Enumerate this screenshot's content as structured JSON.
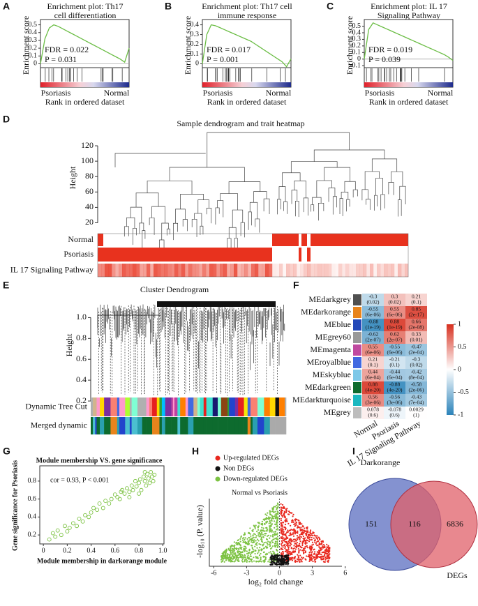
{
  "gsea": [
    {
      "label": "A",
      "title": [
        "Enrichment plot:  Th17",
        "cell differentiation"
      ],
      "ylabel": "Enrichment score",
      "fdr": "FDR = 0.022",
      "p": "P = 0.031",
      "left": "Psoriasis",
      "right": "Normal",
      "xlabel": "Rank in ordered dataset",
      "ylim": [
        -0.05,
        0.55
      ],
      "yticks": [
        0,
        0.1,
        0.2,
        0.3,
        0.4,
        0.5
      ],
      "es_curve": [
        0,
        0.32,
        0.46,
        0.5,
        0.48,
        0.45,
        0.42,
        0.39,
        0.36,
        0.33,
        0.3,
        0.27,
        0.24,
        0.21,
        0.18,
        0.15,
        0.12,
        0.09,
        0.06,
        0.02,
        0.2
      ]
    },
    {
      "label": "B",
      "title": [
        "Enrichment plot:  Th17 cell",
        "immune response"
      ],
      "ylabel": "Enrichment score",
      "fdr": "FDR = 0.017",
      "p": "P = 0.001",
      "left": "Psoriasis",
      "right": "Normal",
      "xlabel": "Rank in ordered dataset",
      "ylim": [
        -0.04,
        0.44
      ],
      "yticks": [
        0,
        0.1,
        0.2,
        0.3,
        0.4
      ],
      "es_curve": [
        0,
        0.3,
        0.4,
        0.39,
        0.37,
        0.35,
        0.33,
        0.31,
        0.29,
        0.27,
        0.25,
        0.23,
        0.2,
        0.17,
        0.14,
        0.11,
        0.08,
        0.05,
        0.02,
        -0.03,
        0.05
      ]
    },
    {
      "label": "C",
      "title": [
        "Enrichment plot: IL 17",
        "Signaling Pathway"
      ],
      "ylabel": "Enrichment score",
      "fdr": "FDR = 0.019",
      "p": "P = 0.039",
      "left": "Psoriasis",
      "right": "Normal",
      "xlabel": "Rank in ordered dataset",
      "ylim": [
        -0.13,
        0.58
      ],
      "yticks": [
        -0.1,
        0,
        0.1,
        0.2,
        0.3,
        0.4,
        0.5
      ],
      "es_curve": [
        0,
        0.45,
        0.55,
        0.52,
        0.49,
        0.46,
        0.43,
        0.4,
        0.37,
        0.34,
        0.31,
        0.28,
        0.25,
        0.22,
        0.19,
        0.16,
        0.13,
        0.1,
        0.07,
        0.03,
        -0.02
      ]
    }
  ],
  "dendrogram": {
    "label": "D",
    "title": "Sample dendrogram and trait heatmap",
    "ylabel": "Height",
    "ylim": [
      15,
      130
    ],
    "yticks": [
      120,
      100,
      80,
      60,
      40,
      20
    ],
    "traits": [
      "Normal",
      "Psoriasis",
      "IL 17 Signaling Pathway"
    ]
  },
  "cluster": {
    "label": "E",
    "title": "Cluster Dendrogram",
    "ylabel": "Height",
    "ylim": [
      0.1,
      1.15
    ],
    "yticks": [
      {
        "value": 1,
        "label": "1.0"
      },
      0.8,
      0.6,
      0.4,
      0.2
    ],
    "bars": [
      "Dynamic Tree Cut",
      "Merged dynamic"
    ]
  },
  "module_heatmap": {
    "label": "F",
    "columns": [
      "Normal",
      "Psoriasis",
      "IL 17 Signaling Pathway"
    ],
    "clim": [
      -1,
      1
    ],
    "colorbar_ticks": [
      1,
      0.5,
      0,
      -0.5,
      -1
    ],
    "rows": [
      {
        "name": "MEdarkgrey",
        "color": "#505050",
        "cells": [
          {
            "value": -0.3,
            "p": "(0.02)"
          },
          {
            "value": 0.3,
            "p": "(0.02)"
          },
          {
            "value": 0.21,
            "p": "(0.1)"
          }
        ]
      },
      {
        "name": "MEdarkorange",
        "color": "#e8841c",
        "cells": [
          {
            "value": -0.55,
            "p": "(6e-06)"
          },
          {
            "value": 0.55,
            "p": "(6e-06)"
          },
          {
            "value": 0.85,
            "p": "(2e-17)"
          }
        ]
      },
      {
        "name": "MEblue",
        "color": "#2449b8",
        "cells": [
          {
            "value": -0.88,
            "p": "(1e-19)"
          },
          {
            "value": 0.88,
            "p": "(1e-19)"
          },
          {
            "value": 0.66,
            "p": "(2e-08)"
          }
        ]
      },
      {
        "name": "MEgrey60",
        "color": "#999999",
        "cells": [
          {
            "value": -0.62,
            "p": "(2e-07)"
          },
          {
            "value": 0.62,
            "p": "(2e-07)"
          },
          {
            "value": 0.33,
            "p": "(0.01)"
          }
        ]
      },
      {
        "name": "MEmagenta",
        "color": "#c04aa0",
        "cells": [
          {
            "value": 0.55,
            "p": "(6e-06)"
          },
          {
            "value": -0.55,
            "p": "(6e-06)"
          },
          {
            "value": -0.47,
            "p": "(2e-04)"
          }
        ]
      },
      {
        "name": "MEroyalblue",
        "color": "#4169e1",
        "cells": [
          {
            "value": 0.21,
            "p": "(0.1)"
          },
          {
            "value": -0.21,
            "p": "(0.1)"
          },
          {
            "value": -0.3,
            "p": "(0.02)"
          }
        ]
      },
      {
        "name": "MEskyblue",
        "color": "#7ec8e8",
        "cells": [
          {
            "value": 0.44,
            "p": "(6e-04)"
          },
          {
            "value": -0.44,
            "p": "(6e-04)"
          },
          {
            "value": -0.42,
            "p": "(8e-04)"
          }
        ]
      },
      {
        "name": "MEdarkgreen",
        "color": "#0d6b2e",
        "cells": [
          {
            "value": 0.88,
            "p": "(4e-20)"
          },
          {
            "value": -0.88,
            "p": "(4e-20)"
          },
          {
            "value": -0.58,
            "p": "(2e-06)"
          }
        ]
      },
      {
        "name": "MEdarkturquoise",
        "color": "#1bb8c0",
        "cells": [
          {
            "value": 0.56,
            "p": "(3e-06)"
          },
          {
            "value": -0.56,
            "p": "(3e-06)"
          },
          {
            "value": -0.43,
            "p": "(7e-04)"
          }
        ]
      },
      {
        "name": "MEgrey",
        "color": "#bdbdbd",
        "cells": [
          {
            "value": 0.078,
            "p": "(0.6)"
          },
          {
            "value": -0.078,
            "p": "(0.6)"
          },
          {
            "value": 0.0029,
            "p": "(1)"
          }
        ]
      }
    ]
  },
  "scatter": {
    "label": "G",
    "title": "Module membership VS. gene significance",
    "annotation": "cor = 0.93, P < 0.001",
    "xlabel": "Module membership in darkorange module",
    "ylabel": "Gene significance for Psoriasis",
    "color": "#7cc242",
    "xlim": [
      -0.03,
      1.01
    ],
    "ylim": [
      0.1,
      0.97
    ],
    "xticks": [
      0,
      0.2,
      0.4,
      0.6,
      0.8,
      {
        "value": 1,
        "label": "1.0"
      }
    ],
    "yticks": [
      0.2,
      0.4,
      0.6,
      0.8
    ],
    "x": [
      0.05,
      0.08,
      0.1,
      0.12,
      0.15,
      0.18,
      0.2,
      0.22,
      0.25,
      0.28,
      0.3,
      0.33,
      0.35,
      0.38,
      0.4,
      0.42,
      0.45,
      0.47,
      0.5,
      0.52,
      0.55,
      0.57,
      0.6,
      0.62,
      0.64,
      0.66,
      0.68,
      0.7,
      0.72,
      0.74,
      0.75,
      0.77,
      0.78,
      0.8,
      0.81,
      0.82,
      0.84,
      0.85,
      0.86,
      0.87,
      0.88,
      0.89,
      0.9,
      0.91,
      0.92,
      0.93,
      0.72,
      0.65,
      0.8,
      0.85
    ],
    "y": [
      0.15,
      0.22,
      0.18,
      0.25,
      0.2,
      0.3,
      0.24,
      0.28,
      0.33,
      0.3,
      0.38,
      0.35,
      0.42,
      0.4,
      0.45,
      0.5,
      0.48,
      0.55,
      0.5,
      0.58,
      0.55,
      0.6,
      0.65,
      0.62,
      0.6,
      0.7,
      0.66,
      0.72,
      0.68,
      0.75,
      0.7,
      0.8,
      0.74,
      0.78,
      0.82,
      0.7,
      0.85,
      0.8,
      0.75,
      0.88,
      0.83,
      0.78,
      0.9,
      0.85,
      0.8,
      0.87,
      0.62,
      0.68,
      0.66,
      0.9
    ]
  },
  "volcano": {
    "label": "H",
    "title": "Normal vs Psoriasis",
    "legend": [
      {
        "name": "Up-regulated DEGs",
        "color": "#e8281e"
      },
      {
        "name": "Non DEGs",
        "color": "#111111"
      },
      {
        "name": "Down-regulated DEGs",
        "color": "#7cc242"
      }
    ],
    "xlabel": "log₂ fold change",
    "ylabel": "-log₁₀ (P. value)",
    "xlim": [
      -6.4,
      5.7
    ],
    "xticks": [
      -6,
      -3,
      0,
      3,
      6
    ]
  },
  "venn": {
    "label": "I",
    "sets": [
      "Darkorange",
      "DEGs"
    ],
    "counts": [
      151,
      116,
      6836
    ]
  }
}
